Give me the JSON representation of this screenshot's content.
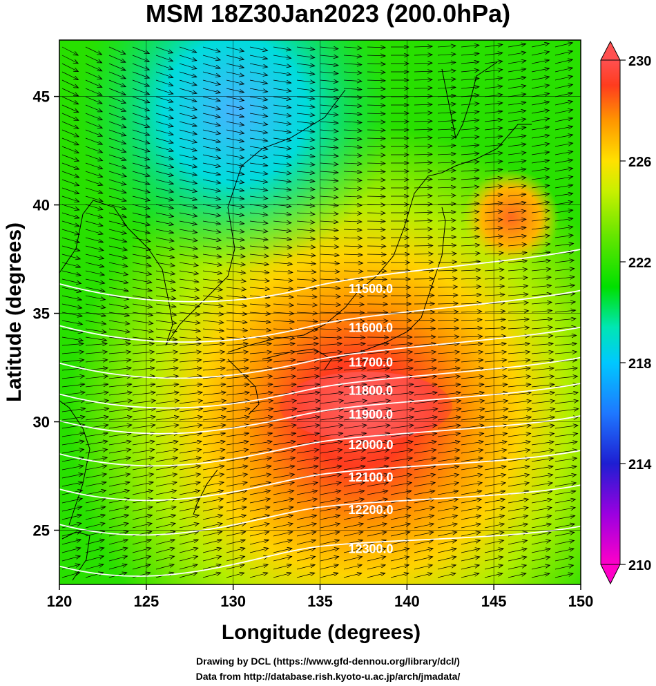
{
  "title": "MSM 18Z30Jan2023 (200.0hPa)",
  "x_axis": {
    "label": "Longitude (degrees)",
    "ticks": [
      "120",
      "125",
      "130",
      "135",
      "140",
      "145",
      "150"
    ],
    "range": [
      120,
      150
    ]
  },
  "y_axis": {
    "label": "Latitude  (degrees)",
    "ticks": [
      "25",
      "30",
      "35",
      "40",
      "45"
    ],
    "range": [
      22.5,
      47.6
    ]
  },
  "colorbar": {
    "ticks": [
      "210",
      "214",
      "218",
      "222",
      "226",
      "230"
    ],
    "range": [
      210,
      230
    ],
    "colors": [
      "#ff00c8",
      "#9b00e0",
      "#1e1ed2",
      "#1e78ff",
      "#00c8ff",
      "#00e6b4",
      "#00e000",
      "#64e600",
      "#c8f000",
      "#ffe100",
      "#ff9600",
      "#ff3c1e",
      "#ff7070"
    ]
  },
  "contours": [
    {
      "label": "11500.0",
      "lat": 36.2
    },
    {
      "label": "11600.0",
      "lat": 34.4
    },
    {
      "label": "11700.0",
      "lat": 32.8
    },
    {
      "label": "11800.0",
      "lat": 31.5
    },
    {
      "label": "11900.0",
      "lat": 30.4
    },
    {
      "label": "12000.0",
      "lat": 29.0
    },
    {
      "label": "12100.0",
      "lat": 27.5
    },
    {
      "label": "12200.0",
      "lat": 26.0
    },
    {
      "label": "12300.0",
      "lat": 24.2
    }
  ],
  "footer": {
    "line1": "Drawing by DCL (https://www.gfd-dennou.org/library/dcl/)",
    "line2": "Data from http://database.rish.kyoto-u.ac.jp/arch/jmadata/"
  }
}
